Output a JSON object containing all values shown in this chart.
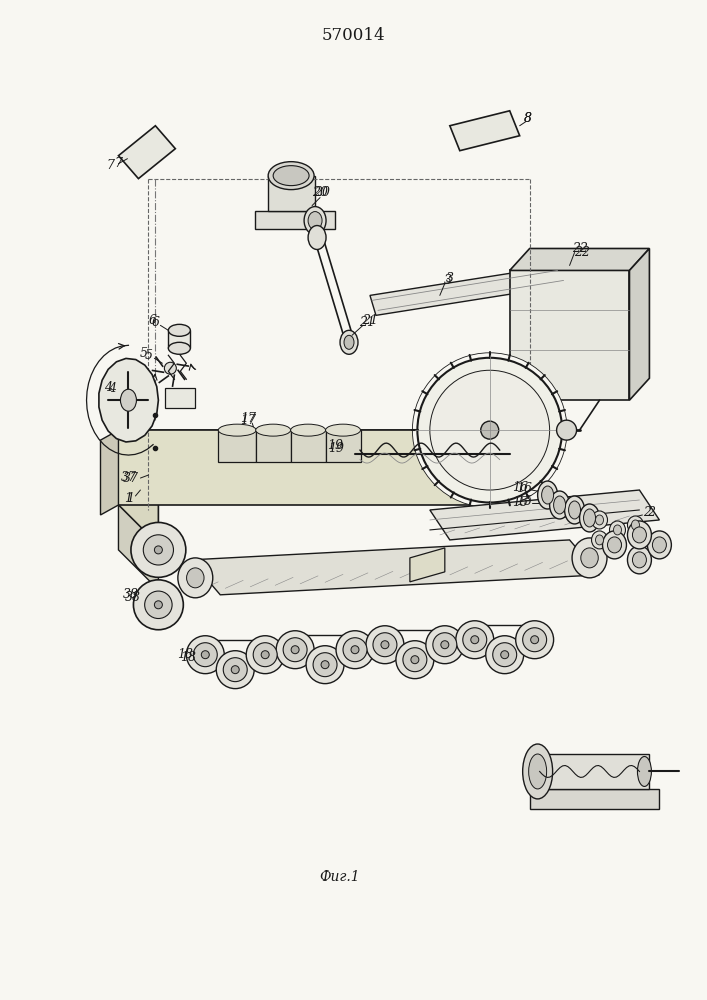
{
  "title": "570014",
  "caption": "Фиг.1",
  "bg_color": "#f8f7f2",
  "lc": "#1a1a1a",
  "figsize": [
    7.07,
    10.0
  ],
  "dpi": 100
}
